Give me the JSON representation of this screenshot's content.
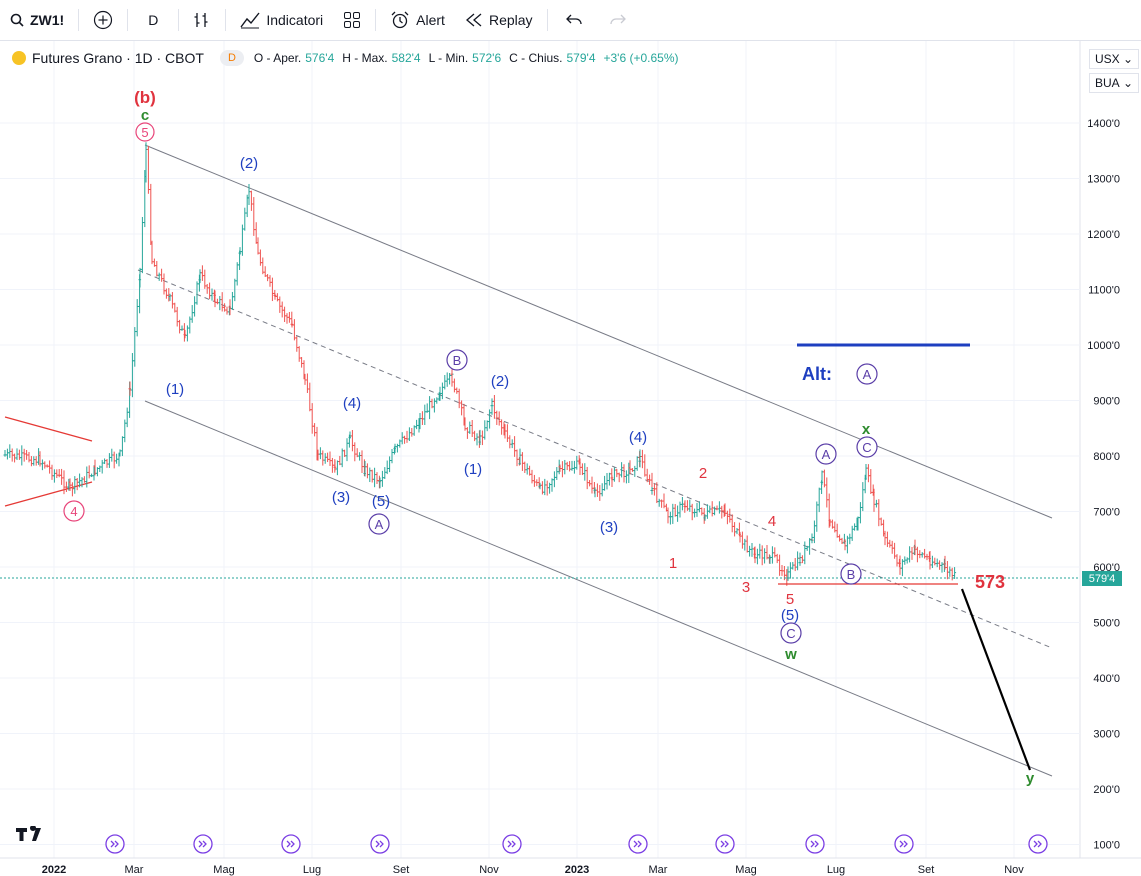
{
  "toolbar": {
    "symbol": "ZW1!",
    "interval": "D",
    "indicators_label": "Indicatori",
    "alert_label": "Alert",
    "replay_label": "Replay"
  },
  "legend": {
    "title": "Futures Grano · 1D · CBOT",
    "badge": "D",
    "open_label": "O - Aper.",
    "open": "576'4",
    "high_label": "H - Max.",
    "high": "582'4",
    "low_label": "L - Min.",
    "low": "572'6",
    "close_label": "C - Chius.",
    "close": "579'4",
    "change": "+3'6 (+0.65%)"
  },
  "right_controls": {
    "currency": "USX",
    "unit": "BUA"
  },
  "price_axis": [
    "1400'0",
    "1300'0",
    "1200'0",
    "1100'0",
    "1000'0",
    "900'0",
    "800'0",
    "700'0",
    "600'0",
    "500'0",
    "400'0",
    "300'0",
    "200'0",
    "100'0"
  ],
  "time_axis": [
    "2022",
    "Mar",
    "Mag",
    "Lug",
    "Set",
    "Nov",
    "2023",
    "Mar",
    "Mag",
    "Lug",
    "Set",
    "Nov"
  ],
  "last_price_tag": "579'4",
  "annotations": {
    "wave_b_red": "(b)",
    "wave_c_green": "c",
    "wave_5_circled": "5",
    "wave_2_top": "(2)",
    "wave_1_left": "(1)",
    "wave_4_left": "(4)",
    "wave_3_left": "(3)",
    "wave_5_left": "(5)",
    "circ_A_left": "A",
    "circ_4_left": "4",
    "circ_B_mid": "B",
    "wave_2_mid": "(2)",
    "wave_1_mid": "(1)",
    "wave_3_mid": "(3)",
    "wave_4_mid": "(4)",
    "red_1": "1",
    "red_2": "2",
    "red_3": "3",
    "red_4": "4",
    "red_5": "5",
    "blue_5": "(5)",
    "circ_C_low": "C",
    "green_w": "w",
    "circ_A_right": "A",
    "circ_B_right": "B",
    "circ_C_right": "C",
    "green_x": "x",
    "alt_label": "Alt:",
    "alt_circ_A": "A",
    "level_573": "573",
    "green_y": "y"
  },
  "colors": {
    "up": "#26a69a",
    "down": "#ef5350",
    "blue": "#1e3fc0",
    "purple": "#5b3fa8",
    "red": "#e0333e",
    "green": "#2e8b2e",
    "pink": "#e8457a"
  },
  "icons": [
    "search-icon",
    "add-icon",
    "bars-icon",
    "indicators-icon",
    "layout-icon",
    "alert-icon",
    "replay-icon",
    "undo-icon",
    "redo-icon"
  ]
}
